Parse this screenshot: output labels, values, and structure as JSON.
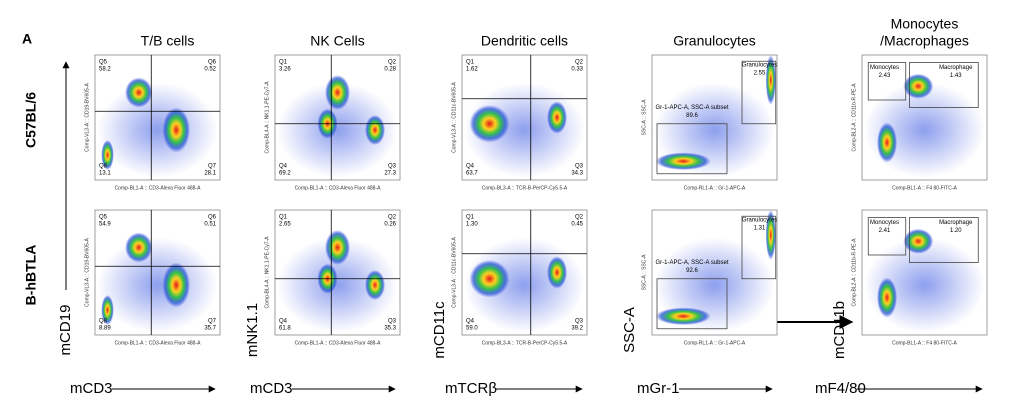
{
  "panel_label": "A",
  "rows": [
    "C57BL/6",
    "B-hBTLA"
  ],
  "columns": [
    {
      "title": [
        "T/B cells"
      ],
      "kind": "quadrant",
      "x_label": "mCD3",
      "y_label": "mCD19",
      "x_axis": "Comp-BL1-A :: CD3-Alexa Fluor 488-A",
      "y_axis": "Comp-VL3-A :: CD19-BV605-A",
      "plots": [
        {
          "gates": [
            {
              "name": "Q5",
              "value": 58.2
            },
            {
              "name": "Q6",
              "value": 0.52
            },
            {
              "name": "Q8",
              "value": 13.1
            },
            {
              "name": "Q7",
              "value": 28.1
            }
          ]
        },
        {
          "gates": [
            {
              "name": "Q5",
              "value": 54.9
            },
            {
              "name": "Q6",
              "value": 0.51
            },
            {
              "name": "Q8",
              "value": 8.89
            },
            {
              "name": "Q7",
              "value": 35.7
            }
          ]
        }
      ]
    },
    {
      "title": [
        "NK Cells"
      ],
      "kind": "quadrant",
      "x_label": "mCD3",
      "y_label": "mNK1.1",
      "x_axis": "Comp-BL1-A :: CD3-Alexa Fluor 488-A",
      "y_axis": "Comp-BL4-A :: NK1.1-PE-Cy7-A",
      "plots": [
        {
          "gates": [
            {
              "name": "Q1",
              "value": 3.26
            },
            {
              "name": "Q2",
              "value": 0.28
            },
            {
              "name": "Q4",
              "value": 69.2
            },
            {
              "name": "Q3",
              "value": 27.3
            }
          ]
        },
        {
          "gates": [
            {
              "name": "Q1",
              "value": 2.65
            },
            {
              "name": "Q2",
              "value": 0.26
            },
            {
              "name": "Q4",
              "value": 61.8
            },
            {
              "name": "Q3",
              "value": 35.3
            }
          ]
        }
      ]
    },
    {
      "title": [
        "Dendritic cells"
      ],
      "kind": "quadrant",
      "x_label": "mTCRβ",
      "y_label": "mCD11c",
      "x_axis": "Comp-BL3-A :: TCR-B-PerCP-Cy5.5-A",
      "y_axis": "Comp-VL3-A :: CD11c-BV605-A",
      "plots": [
        {
          "gates": [
            {
              "name": "Q1",
              "value": 1.62
            },
            {
              "name": "Q2",
              "value": 0.33
            },
            {
              "name": "Q4",
              "value": 63.7
            },
            {
              "name": "Q3",
              "value": 34.3
            }
          ]
        },
        {
          "gates": [
            {
              "name": "Q1",
              "value": "1.30"
            },
            {
              "name": "Q2",
              "value": 0.45
            },
            {
              "name": "Q4",
              "value": "59.0"
            },
            {
              "name": "Q3",
              "value": 39.2
            }
          ]
        }
      ]
    },
    {
      "title": [
        "Granulocytes"
      ],
      "kind": "granulocyte",
      "x_label": "mGr-1",
      "y_label": "SSC-A",
      "x_axis": "Comp-RL1-A :: Gr-1-APC-A",
      "y_axis": "SSC-A :: SSC-A",
      "plots": [
        {
          "gates": [
            {
              "name": "Granulocytes",
              "value": 2.55
            },
            {
              "name": "Gr-1-APC-A, SSC-A subset",
              "value": 89.6
            }
          ]
        },
        {
          "gates": [
            {
              "name": "Granulocytes",
              "value": 1.31
            },
            {
              "name": "Gr-1-APC-A, SSC-A subset",
              "value": 92.6
            }
          ]
        }
      ]
    },
    {
      "title": [
        "Monocytes",
        "/Macrophages"
      ],
      "kind": "monocyte",
      "x_label": "mF4/80",
      "y_label": "mCD11b",
      "x_axis": "Comp-BL1-A :: F4 80-FITC-A",
      "y_axis": "Comp-BL2-A :: CD11b-R-PE-A",
      "plots": [
        {
          "gates": [
            {
              "name": "Monocytes",
              "value": 2.43
            },
            {
              "name": "Macrophage",
              "value": 1.43
            }
          ]
        },
        {
          "gates": [
            {
              "name": "Monocytes",
              "value": 2.41
            },
            {
              "name": "Macrophage",
              "value": "1.20"
            }
          ]
        }
      ]
    }
  ]
}
